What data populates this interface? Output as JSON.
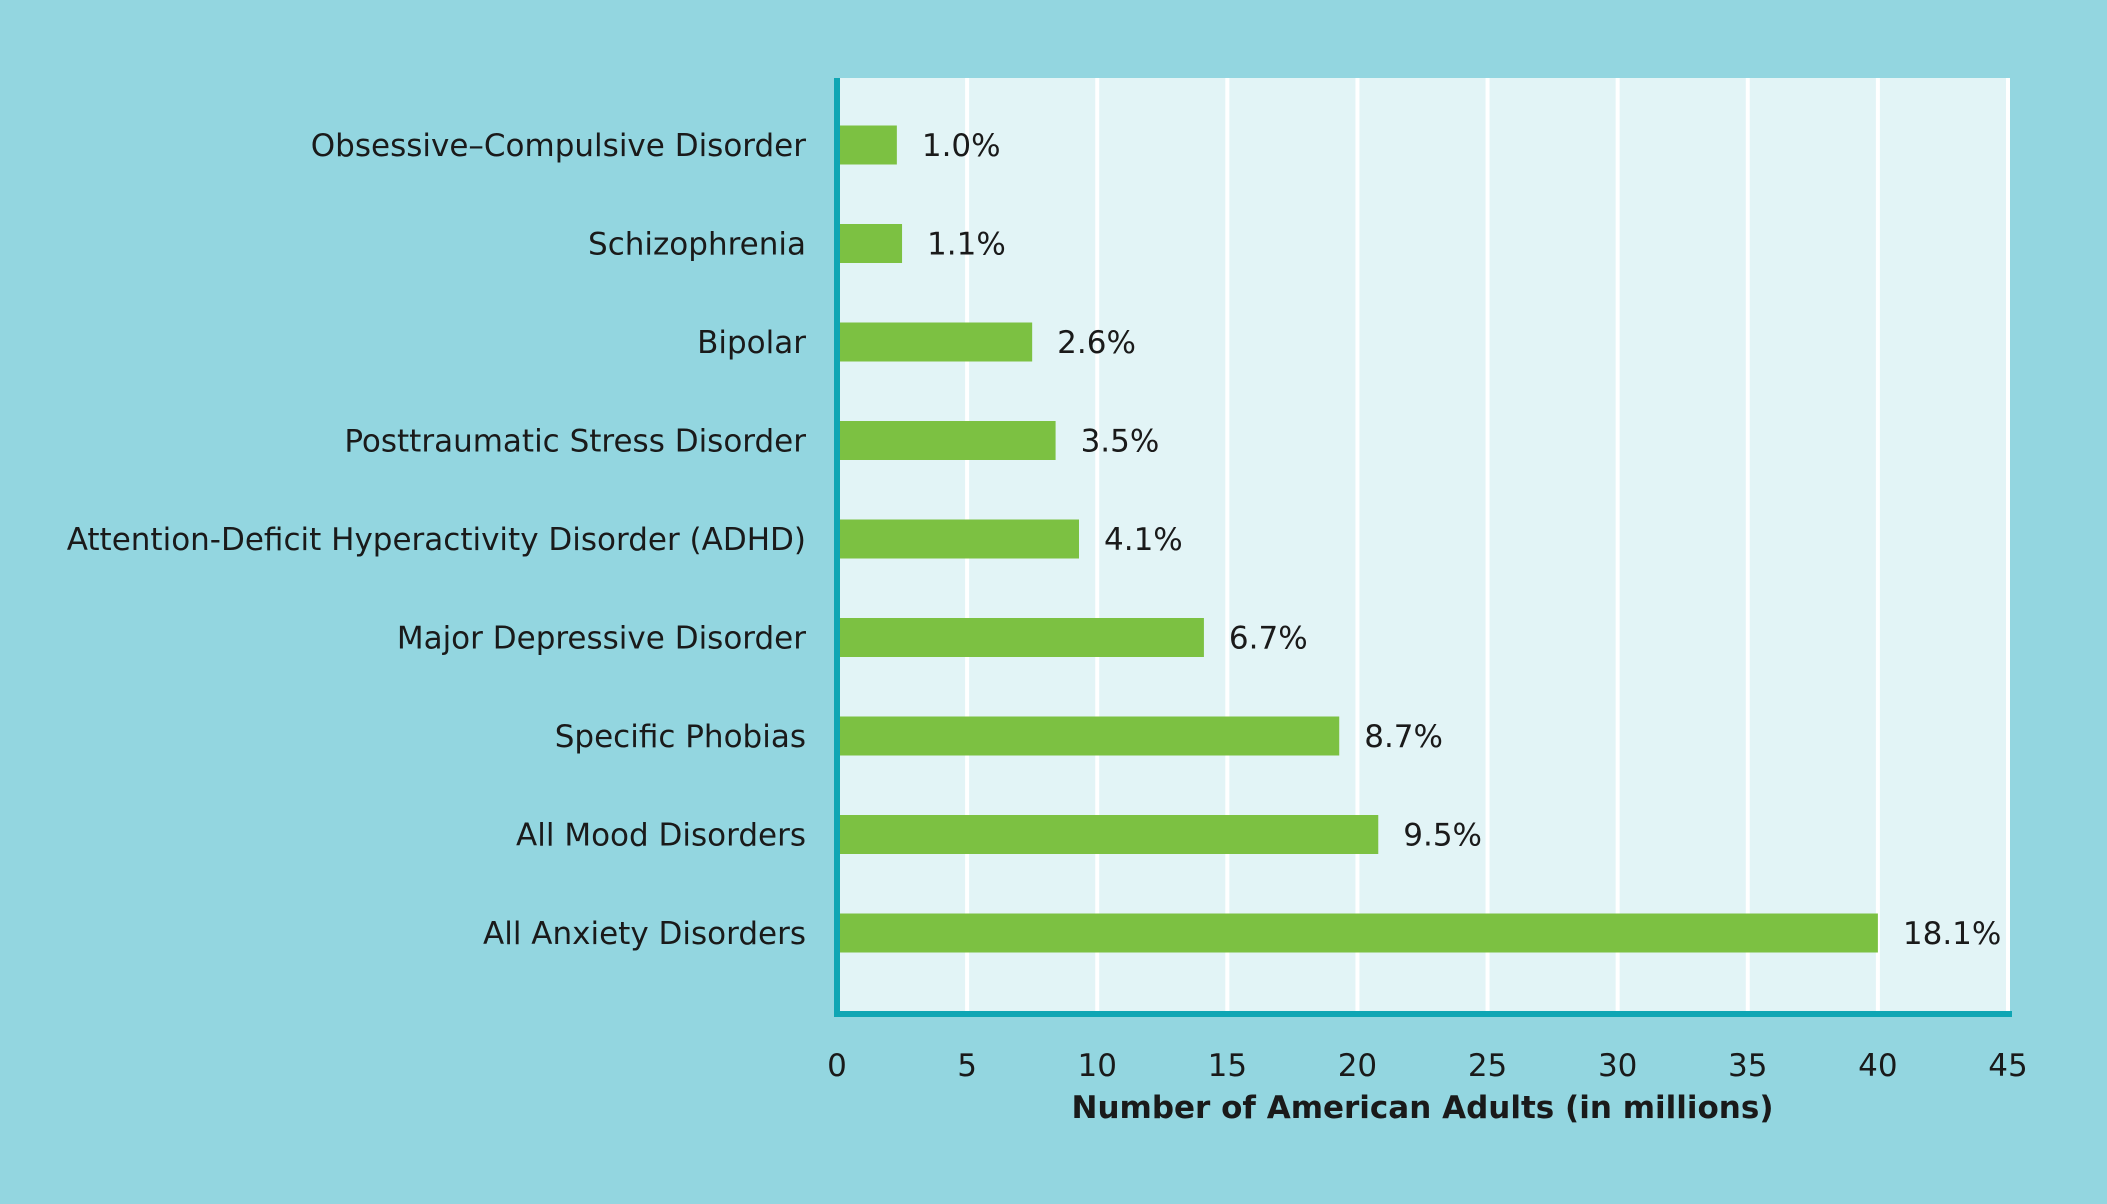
{
  "chart_data": {
    "type": "bar",
    "orientation": "horizontal",
    "categories": [
      "Obsessive–Compulsive Disorder",
      "Schizophrenia",
      "Bipolar",
      "Posttraumatic Stress Disorder",
      "Attention-Deficit Hyperactivity Disorder (ADHD)",
      "Major Depressive Disorder",
      "Specific Phobias",
      "All Mood Disorders",
      "All Anxiety Disorders"
    ],
    "values": [
      2.3,
      2.5,
      7.5,
      8.4,
      9.3,
      14.1,
      19.3,
      20.8,
      40.0
    ],
    "data_labels": [
      "1.0%",
      "1.1%",
      "2.6%",
      "3.5%",
      "4.1%",
      "6.7%",
      "8.7%",
      "9.5%",
      "18.1%"
    ],
    "xlabel": "Number of American Adults (in millions)",
    "ylabel": "",
    "xlim": [
      0,
      45
    ],
    "xticks": [
      "0",
      "5",
      "10",
      "15",
      "20",
      "25",
      "30",
      "35",
      "40",
      "45"
    ],
    "grid": "vertical",
    "colors": {
      "background": "#93d6e0",
      "plot_area": "#e2f4f6",
      "bar": "#7cc142",
      "axis": "#10a6b4",
      "grid": "#ffffff"
    }
  }
}
